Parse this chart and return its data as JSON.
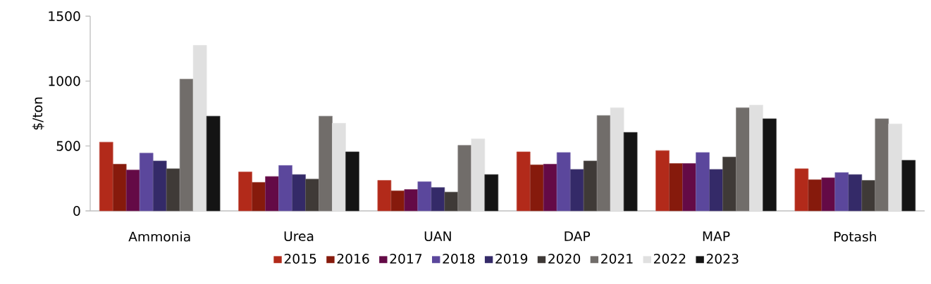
{
  "chart_data": {
    "type": "bar",
    "ylabel": "$/ton",
    "categories": [
      "Ammonia",
      "Urea",
      "UAN",
      "DAP",
      "MAP",
      "Potash"
    ],
    "series": [
      {
        "name": "2015",
        "color": "#b22a1a",
        "values": [
          530,
          300,
          235,
          455,
          465,
          325
        ]
      },
      {
        "name": "2016",
        "color": "#861a0c",
        "values": [
          360,
          220,
          155,
          355,
          365,
          240
        ]
      },
      {
        "name": "2017",
        "color": "#640a46",
        "values": [
          315,
          265,
          165,
          360,
          365,
          255
        ]
      },
      {
        "name": "2018",
        "color": "#5b479c",
        "values": [
          445,
          350,
          225,
          450,
          450,
          295
        ]
      },
      {
        "name": "2019",
        "color": "#342a68",
        "values": [
          385,
          280,
          180,
          320,
          320,
          280
        ]
      },
      {
        "name": "2020",
        "color": "#3f3a37",
        "values": [
          325,
          245,
          145,
          385,
          415,
          235
        ]
      },
      {
        "name": "2021",
        "color": "#716d6a",
        "values": [
          1015,
          730,
          505,
          735,
          795,
          710
        ]
      },
      {
        "name": "2022",
        "color": "#e0e0e0",
        "values": [
          1275,
          675,
          555,
          795,
          815,
          670
        ]
      },
      {
        "name": "2023",
        "color": "#141414",
        "values": [
          730,
          455,
          280,
          605,
          710,
          390
        ]
      }
    ],
    "ylim": [
      0,
      1500
    ],
    "yticks": [
      0,
      500,
      1000,
      1500
    ],
    "grid": false,
    "legend": "bottom"
  }
}
